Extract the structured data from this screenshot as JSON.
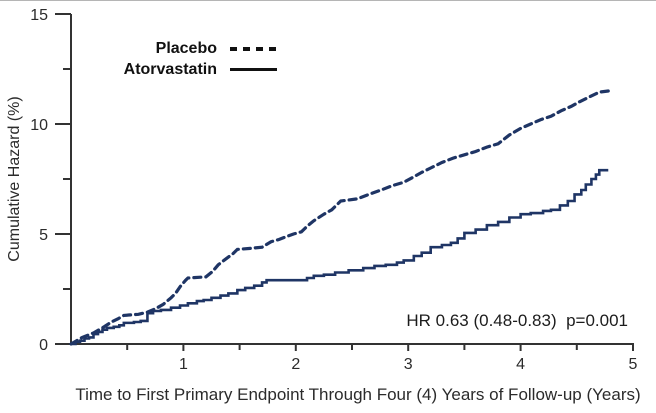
{
  "legend": {
    "placebo_label": "Placebo",
    "atorvastatin_label": "Atorvastatin"
  },
  "annotation": "HR 0.63 (0.48-0.83)  p=0.001",
  "colors": {
    "curve": "#1f3565",
    "legend_sample": "#111111",
    "axis": "#333333"
  },
  "chart_data": {
    "type": "line",
    "title": "",
    "xlabel": "Time to First Primary Endpoint Through Four (4) Years of Follow-up (Years)",
    "ylabel": "Cumulative Hazard (%)",
    "xlim": [
      0,
      5
    ],
    "ylim": [
      0,
      15
    ],
    "grid": false,
    "legend_position": "top-left-inside",
    "x_major_ticks": [
      1,
      2,
      3,
      4,
      5
    ],
    "x_minor_ticks": [
      0.5,
      1.5,
      2.5,
      3.5,
      4.5
    ],
    "y_major_ticks": [
      0,
      5,
      10,
      15
    ],
    "y_minor_ticks": [
      2.5,
      7.5,
      12.5
    ],
    "hr_annotation": "HR 0.63 (0.48-0.83)  p=0.001",
    "series": [
      {
        "name": "Placebo",
        "style": "dashed",
        "color": "#1f3565",
        "points": [
          [
            0,
            0
          ],
          [
            0.05,
            0.15
          ],
          [
            0.1,
            0.3
          ],
          [
            0.15,
            0.4
          ],
          [
            0.2,
            0.5
          ],
          [
            0.25,
            0.65
          ],
          [
            0.3,
            0.8
          ],
          [
            0.36,
            1.0
          ],
          [
            0.42,
            1.15
          ],
          [
            0.47,
            1.3
          ],
          [
            0.6,
            1.35
          ],
          [
            0.68,
            1.45
          ],
          [
            0.75,
            1.6
          ],
          [
            0.82,
            1.8
          ],
          [
            0.89,
            2.1
          ],
          [
            0.93,
            2.3
          ],
          [
            0.97,
            2.6
          ],
          [
            1.02,
            2.9
          ],
          [
            1.04,
            3.0
          ],
          [
            1.2,
            3.05
          ],
          [
            1.26,
            3.3
          ],
          [
            1.31,
            3.6
          ],
          [
            1.36,
            3.8
          ],
          [
            1.4,
            3.95
          ],
          [
            1.44,
            4.1
          ],
          [
            1.48,
            4.3
          ],
          [
            1.6,
            4.35
          ],
          [
            1.7,
            4.4
          ],
          [
            1.78,
            4.65
          ],
          [
            1.85,
            4.75
          ],
          [
            1.9,
            4.85
          ],
          [
            1.98,
            5.0
          ],
          [
            2.05,
            5.1
          ],
          [
            2.1,
            5.35
          ],
          [
            2.16,
            5.6
          ],
          [
            2.25,
            5.9
          ],
          [
            2.32,
            6.1
          ],
          [
            2.4,
            6.5
          ],
          [
            2.55,
            6.6
          ],
          [
            2.65,
            6.8
          ],
          [
            2.76,
            7.0
          ],
          [
            2.86,
            7.2
          ],
          [
            2.96,
            7.35
          ],
          [
            3.05,
            7.6
          ],
          [
            3.12,
            7.8
          ],
          [
            3.2,
            8.0
          ],
          [
            3.3,
            8.25
          ],
          [
            3.4,
            8.45
          ],
          [
            3.5,
            8.6
          ],
          [
            3.6,
            8.75
          ],
          [
            3.7,
            8.95
          ],
          [
            3.8,
            9.1
          ],
          [
            3.9,
            9.5
          ],
          [
            4.0,
            9.8
          ],
          [
            4.09,
            10.0
          ],
          [
            4.18,
            10.2
          ],
          [
            4.27,
            10.35
          ],
          [
            4.36,
            10.6
          ],
          [
            4.45,
            10.8
          ],
          [
            4.52,
            11.0
          ],
          [
            4.6,
            11.2
          ],
          [
            4.66,
            11.35
          ],
          [
            4.7,
            11.45
          ],
          [
            4.78,
            11.5
          ]
        ]
      },
      {
        "name": "Atorvastatin",
        "style": "solid",
        "color": "#1f3565",
        "points": [
          [
            0,
            0
          ],
          [
            0.04,
            0.1
          ],
          [
            0.08,
            0.15
          ],
          [
            0.12,
            0.25
          ],
          [
            0.16,
            0.3
          ],
          [
            0.2,
            0.45
          ],
          [
            0.24,
            0.55
          ],
          [
            0.28,
            0.65
          ],
          [
            0.32,
            0.73
          ],
          [
            0.38,
            0.78
          ],
          [
            0.43,
            0.85
          ],
          [
            0.47,
            0.96
          ],
          [
            0.56,
            1.0
          ],
          [
            0.62,
            1.05
          ],
          [
            0.68,
            1.4
          ],
          [
            0.73,
            1.5
          ],
          [
            0.8,
            1.55
          ],
          [
            0.89,
            1.65
          ],
          [
            0.97,
            1.75
          ],
          [
            1.04,
            1.85
          ],
          [
            1.12,
            1.95
          ],
          [
            1.18,
            2.0
          ],
          [
            1.25,
            2.1
          ],
          [
            1.33,
            2.2
          ],
          [
            1.4,
            2.3
          ],
          [
            1.48,
            2.45
          ],
          [
            1.55,
            2.55
          ],
          [
            1.63,
            2.65
          ],
          [
            1.7,
            2.8
          ],
          [
            1.74,
            2.9
          ],
          [
            2.0,
            2.9
          ],
          [
            2.1,
            3.0
          ],
          [
            2.16,
            3.1
          ],
          [
            2.25,
            3.15
          ],
          [
            2.35,
            3.25
          ],
          [
            2.47,
            3.35
          ],
          [
            2.6,
            3.45
          ],
          [
            2.7,
            3.55
          ],
          [
            2.8,
            3.6
          ],
          [
            2.9,
            3.7
          ],
          [
            2.96,
            3.8
          ],
          [
            3.05,
            4.0
          ],
          [
            3.12,
            4.15
          ],
          [
            3.2,
            4.4
          ],
          [
            3.3,
            4.5
          ],
          [
            3.38,
            4.6
          ],
          [
            3.44,
            4.8
          ],
          [
            3.5,
            5.05
          ],
          [
            3.6,
            5.2
          ],
          [
            3.7,
            5.4
          ],
          [
            3.8,
            5.55
          ],
          [
            3.9,
            5.75
          ],
          [
            4.0,
            5.9
          ],
          [
            4.09,
            5.95
          ],
          [
            4.2,
            6.05
          ],
          [
            4.27,
            6.1
          ],
          [
            4.35,
            6.3
          ],
          [
            4.42,
            6.5
          ],
          [
            4.48,
            6.8
          ],
          [
            4.54,
            7.0
          ],
          [
            4.58,
            7.25
          ],
          [
            4.63,
            7.5
          ],
          [
            4.67,
            7.7
          ],
          [
            4.7,
            7.9
          ],
          [
            4.78,
            7.9
          ]
        ]
      }
    ]
  }
}
